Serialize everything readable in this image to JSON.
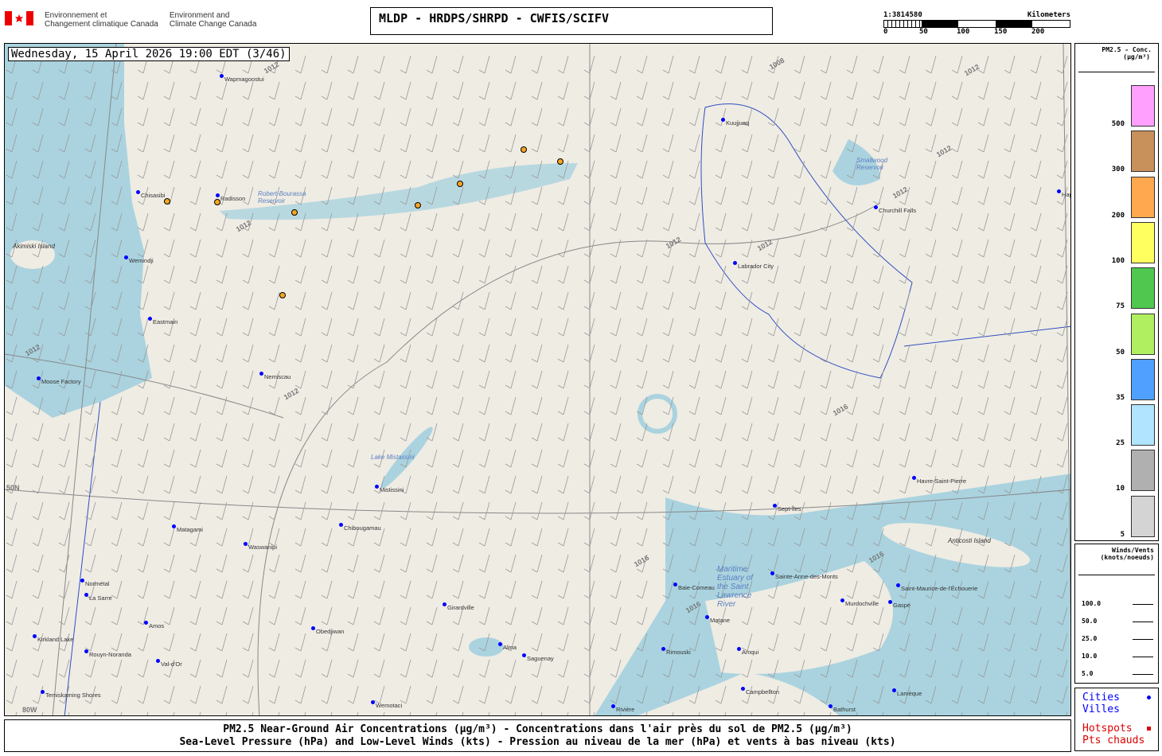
{
  "header": {
    "dept_fr": "Environnement et\nChangement climatique Canada",
    "dept_en": "Environment and\nClimate Change Canada",
    "title": "MLDP - HRDPS/SHRPD - CWFIS/SCIFV"
  },
  "scale": {
    "ratio": "1:3814580",
    "unit": "Kilometers",
    "ticks": [
      "0",
      "50",
      "100",
      "150",
      "200"
    ]
  },
  "map": {
    "datetime": "Wednesday, 15 April 2026 19:00 EDT (3/46)",
    "cities": [
      "Wapmagoostui",
      "Chisasibi",
      "Radisson",
      "Wemindji",
      "Eastmain",
      "Nemiscau",
      "Moose Factory",
      "Mistissini",
      "Chibougamau",
      "Waswanipi",
      "Matagami",
      "Normétal",
      "La Sarre",
      "Amos",
      "Rouyn-Noranda",
      "Val-d'Or",
      "Kirkland Lake",
      "Temiskaming Shores",
      "Obedjiwan",
      "Wemotaci",
      "Girardville",
      "Alma",
      "Saguenay",
      "Baie-Comeau",
      "Matane",
      "Rimouski",
      "Amqui",
      "Sainte-Anne-des-Monts",
      "Murdochville",
      "Gaspé",
      "Saint-Maurice-de-l'Échouerie",
      "Sept-Îles",
      "Havre-Saint-Pierre",
      "Campbellton",
      "Bathurst",
      "Lamèque",
      "Rivière",
      "Kuujjuaq",
      "Churchill Falls",
      "Happy Valley-Goose Bay",
      "Labrador City"
    ],
    "places": [
      "Akimiski Island",
      "Anticosti Island",
      "Maritime Estuary of the Saint Lawrence River",
      "Lake Mistassini",
      "Smallwood Reservoir",
      "Robert-Bourassa Reservoir"
    ],
    "isobars": [
      "1008",
      "1012",
      "1012",
      "1012",
      "1012",
      "1012",
      "1012",
      "1012",
      "1016",
      "1016",
      "1016",
      "1016",
      "1012",
      "1012"
    ],
    "grid_labels": [
      "50N",
      "80W"
    ]
  },
  "legend": {
    "title": "PM2.5 - Conc.",
    "unit": "(µg/m³)",
    "levels": [
      "500",
      "300",
      "200",
      "100",
      "75",
      "50",
      "35",
      "25",
      "10",
      "5"
    ],
    "colors": [
      "#ffa0ff",
      "#c8905a",
      "#ffa850",
      "#ffff60",
      "#50c850",
      "#b0f060",
      "#50a0ff",
      "#b0e4ff",
      "#b0b0b0",
      "#d4d4d4"
    ]
  },
  "winds": {
    "title": "Winds/Vents",
    "unit": "(knots/noeuds)",
    "speeds": [
      "100.0",
      "50.0",
      "25.0",
      "10.0",
      "5.0"
    ]
  },
  "keys": {
    "cities_en": "Cities",
    "cities_fr": "Villes",
    "hot_en": "Hotspots",
    "hot_fr": "Pts chauds",
    "city_color": "#0000ff",
    "hot_color": "#dd0000"
  },
  "caption": {
    "line1": "PM2.5 Near-Ground Air Concentrations (µg/m³) - Concentrations dans l'air près du sol de PM2.5 (µg/m³)",
    "line2": "Sea-Level Pressure (hPa) and Low-Level Winds (kts) - Pression au niveau de la mer (hPa) et vents à bas niveau (kts)"
  }
}
